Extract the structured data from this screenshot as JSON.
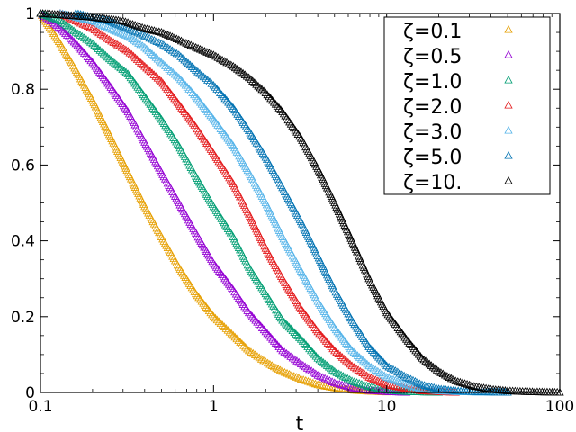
{
  "chart_data": {
    "type": "scatter",
    "title": "",
    "xlabel": "t",
    "ylabel": "",
    "xscale": "log",
    "xlim": [
      0.1,
      100
    ],
    "ylim": [
      0,
      1
    ],
    "xticks": [
      0.1,
      1,
      10,
      100
    ],
    "xtick_labels": [
      "0.1",
      "1",
      "10",
      "100"
    ],
    "yticks": [
      0,
      0.2,
      0.4,
      0.6,
      0.8,
      1
    ],
    "ytick_labels": [
      "0",
      "0.2",
      "0.4",
      "0.6",
      "0.8",
      "1"
    ],
    "grid": false,
    "legend_position": "top-right",
    "marker": "open-triangle",
    "series": [
      {
        "name": "ζ=0.1",
        "color": "#e69f00",
        "x": [
          0.1,
          0.13,
          0.16,
          0.2,
          0.25,
          0.32,
          0.4,
          0.5,
          0.63,
          0.79,
          1.0,
          1.3,
          1.6,
          2.0,
          2.5,
          3.2,
          4.0,
          5.0,
          6.3,
          7.9,
          10.0
        ],
        "y": [
          1.0,
          0.92,
          0.85,
          0.77,
          0.68,
          0.58,
          0.49,
          0.41,
          0.33,
          0.26,
          0.2,
          0.15,
          0.11,
          0.08,
          0.055,
          0.035,
          0.02,
          0.012,
          0.006,
          0.003,
          0.001
        ]
      },
      {
        "name": "ζ=0.5",
        "color": "#9400d3",
        "x": [
          0.1,
          0.13,
          0.16,
          0.2,
          0.25,
          0.32,
          0.4,
          0.5,
          0.63,
          0.79,
          1.0,
          1.3,
          1.6,
          2.0,
          2.5,
          3.2,
          4.0,
          5.0,
          6.3,
          7.9,
          10.0,
          13.0
        ],
        "y": [
          1.0,
          0.96,
          0.92,
          0.87,
          0.81,
          0.74,
          0.66,
          0.58,
          0.5,
          0.42,
          0.34,
          0.27,
          0.21,
          0.16,
          0.11,
          0.075,
          0.045,
          0.025,
          0.012,
          0.005,
          0.002,
          0.0
        ]
      },
      {
        "name": "ζ=1.0",
        "color": "#009e73",
        "x": [
          0.1,
          0.13,
          0.16,
          0.2,
          0.25,
          0.32,
          0.4,
          0.5,
          0.63,
          0.79,
          1.0,
          1.3,
          1.6,
          2.0,
          2.5,
          3.2,
          4.0,
          5.0,
          6.3,
          7.9,
          10.0,
          13.0,
          16.0,
          20.0
        ],
        "y": [
          1.0,
          0.98,
          0.95,
          0.92,
          0.88,
          0.84,
          0.78,
          0.72,
          0.65,
          0.57,
          0.49,
          0.41,
          0.33,
          0.26,
          0.19,
          0.14,
          0.09,
          0.055,
          0.03,
          0.015,
          0.006,
          0.002,
          0.001,
          0.0
        ]
      },
      {
        "name": "ζ=2.0",
        "color": "#e41a1c",
        "x": [
          0.13,
          0.16,
          0.2,
          0.25,
          0.32,
          0.4,
          0.5,
          0.63,
          0.79,
          1.0,
          1.3,
          1.6,
          2.0,
          2.5,
          3.2,
          4.0,
          5.0,
          6.3,
          7.9,
          10.0,
          13.0,
          16.0,
          20.0,
          25.0
        ],
        "y": [
          1.0,
          0.98,
          0.96,
          0.93,
          0.9,
          0.86,
          0.82,
          0.76,
          0.7,
          0.63,
          0.55,
          0.47,
          0.38,
          0.3,
          0.22,
          0.16,
          0.11,
          0.07,
          0.04,
          0.02,
          0.01,
          0.004,
          0.002,
          0.0
        ]
      },
      {
        "name": "ζ=3.0",
        "color": "#56b4e9",
        "x": [
          0.13,
          0.16,
          0.2,
          0.25,
          0.32,
          0.4,
          0.5,
          0.63,
          0.79,
          1.0,
          1.3,
          1.6,
          2.0,
          2.5,
          3.2,
          4.0,
          5.0,
          6.3,
          7.9,
          10.0,
          13.0,
          16.0,
          20.0,
          25.0,
          32.0,
          40.0
        ],
        "y": [
          1.0,
          0.99,
          0.98,
          0.96,
          0.94,
          0.91,
          0.87,
          0.83,
          0.78,
          0.72,
          0.65,
          0.58,
          0.5,
          0.41,
          0.32,
          0.24,
          0.17,
          0.11,
          0.07,
          0.04,
          0.02,
          0.009,
          0.004,
          0.002,
          0.001,
          0.0
        ]
      },
      {
        "name": "ζ=5.0",
        "color": "#0072b2",
        "x": [
          0.16,
          0.2,
          0.25,
          0.32,
          0.4,
          0.5,
          0.63,
          0.79,
          1.0,
          1.3,
          1.6,
          2.0,
          2.5,
          3.2,
          4.0,
          5.0,
          6.3,
          7.9,
          10.0,
          13.0,
          16.0,
          20.0,
          25.0,
          32.0,
          40.0,
          50.0
        ],
        "y": [
          1.0,
          0.99,
          0.98,
          0.96,
          0.94,
          0.92,
          0.89,
          0.85,
          0.81,
          0.75,
          0.69,
          0.62,
          0.54,
          0.45,
          0.36,
          0.27,
          0.19,
          0.12,
          0.07,
          0.04,
          0.02,
          0.009,
          0.004,
          0.002,
          0.001,
          0.0
        ]
      },
      {
        "name": "ζ=10.",
        "color": "#000000",
        "x": [
          0.1,
          0.2,
          0.3,
          0.4,
          0.5,
          0.63,
          0.79,
          1.0,
          1.3,
          1.6,
          2.0,
          2.5,
          3.2,
          4.0,
          5.0,
          6.3,
          7.9,
          10.0,
          13.0,
          16.0,
          20.0,
          25.0,
          32.0,
          40.0,
          50.0,
          63.0,
          79.0,
          100.0
        ],
        "y": [
          1.0,
          0.99,
          0.98,
          0.96,
          0.95,
          0.93,
          0.91,
          0.89,
          0.86,
          0.83,
          0.79,
          0.74,
          0.67,
          0.59,
          0.5,
          0.4,
          0.3,
          0.21,
          0.14,
          0.09,
          0.055,
          0.03,
          0.016,
          0.008,
          0.004,
          0.002,
          0.001,
          0.0
        ]
      }
    ]
  }
}
